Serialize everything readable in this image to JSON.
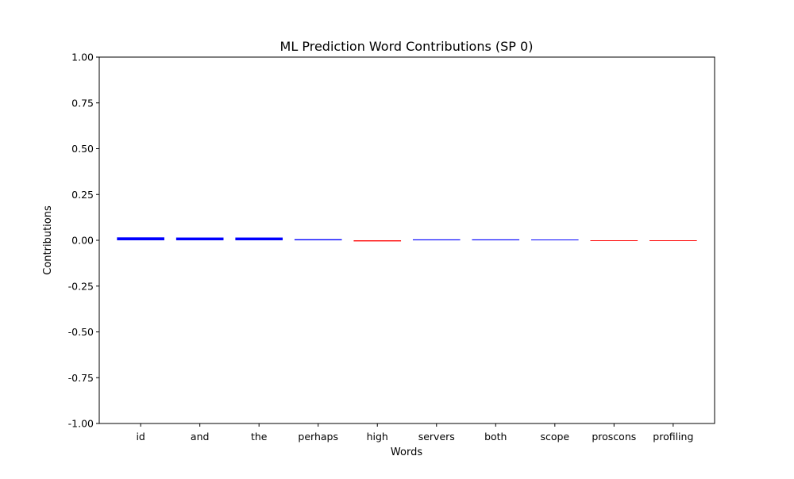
{
  "chart_data": {
    "type": "bar",
    "title": "ML Prediction Word Contributions (SP 0)",
    "xlabel": "Words",
    "ylabel": "Contributions",
    "ylim": [
      -1.0,
      1.0
    ],
    "yticks": [
      "-1.00",
      "-0.75",
      "-0.50",
      "-0.25",
      "0.00",
      "0.25",
      "0.50",
      "0.75",
      "1.00"
    ],
    "ytick_values": [
      -1.0,
      -0.75,
      -0.5,
      -0.25,
      0.0,
      0.25,
      0.5,
      0.75,
      1.0
    ],
    "categories": [
      "id",
      "and",
      "the",
      "perhaps",
      "high",
      "servers",
      "both",
      "scope",
      "proscons",
      "profiling"
    ],
    "values": [
      0.016,
      0.015,
      0.015,
      0.006,
      -0.006,
      0.005,
      0.005,
      0.002,
      -0.002,
      -0.002
    ],
    "colors": {
      "positive": "#0000ff",
      "negative": "#ff0000"
    },
    "grid": false,
    "legend": "none"
  }
}
